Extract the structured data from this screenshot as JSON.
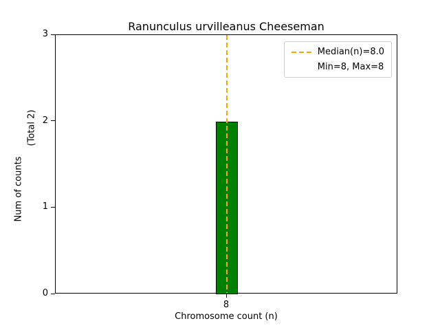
{
  "chart_data": {
    "type": "bar",
    "title": "Ranunculus urvilleanus Cheeseman",
    "xlabel": "Chromosome count (n)",
    "ylabel": "Num of counts",
    "ylabel_note": "(Total 2)",
    "categories": [
      "8"
    ],
    "values": [
      2
    ],
    "ylim": [
      0,
      3
    ],
    "yticks": [
      0,
      1,
      2,
      3
    ],
    "grid": false,
    "legend_position": "upper right",
    "bar_color": "#008000",
    "bar_edge_color": "#000000",
    "median_line": {
      "value": 8.0,
      "color": "#FFA500",
      "style": "dashed"
    },
    "legend": {
      "entries": [
        {
          "label": "Median(n)=8.0",
          "handle": "dashed-line",
          "color": "#FFA500"
        },
        {
          "label": "Min=8, Max=8",
          "handle": "none",
          "color": ""
        }
      ]
    }
  }
}
